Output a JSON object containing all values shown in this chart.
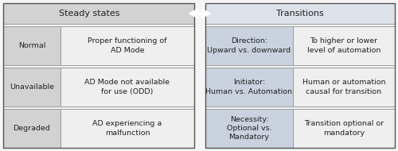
{
  "fig_width": 5.0,
  "fig_height": 1.9,
  "dpi": 100,
  "bg_color": "#f5f5f5",
  "header_bg_left": "#d2d2d2",
  "header_bg_right": "#dde2ea",
  "cell_bg_label": "#d2d2d2",
  "cell_bg_desc_left": "#efefef",
  "cell_bg_transition_key": "#c8d3df",
  "cell_bg_transition_val": "#efefef",
  "header_left_text": "Steady states",
  "header_right_text": "Transitions",
  "rows_left": [
    {
      "label": "Normal",
      "desc": "Proper functioning of\nAD Mode"
    },
    {
      "label": "Unavailable",
      "desc": "AD Mode not available\nfor use (ODD)"
    },
    {
      "label": "Degraded",
      "desc": "AD experiencing a\nmalfunction"
    }
  ],
  "rows_right": [
    {
      "key": "Direction:\nUpward vs. downward",
      "val": "To higher or lower\nlevel of automation"
    },
    {
      "key": "Initiator:\nHuman vs. Automation",
      "val": "Human or automation\ncausal for transition"
    },
    {
      "key": "Necessity:\nOptional vs.\nMandatory",
      "val": "Transition optional or\nmandatory"
    }
  ],
  "text_color": "#222222",
  "font_size_header": 8.0,
  "font_size_cell": 6.8,
  "border_color": "#999999",
  "border_lw": 0.7,
  "outer_border_color": "#555555",
  "outer_border_lw": 1.0
}
